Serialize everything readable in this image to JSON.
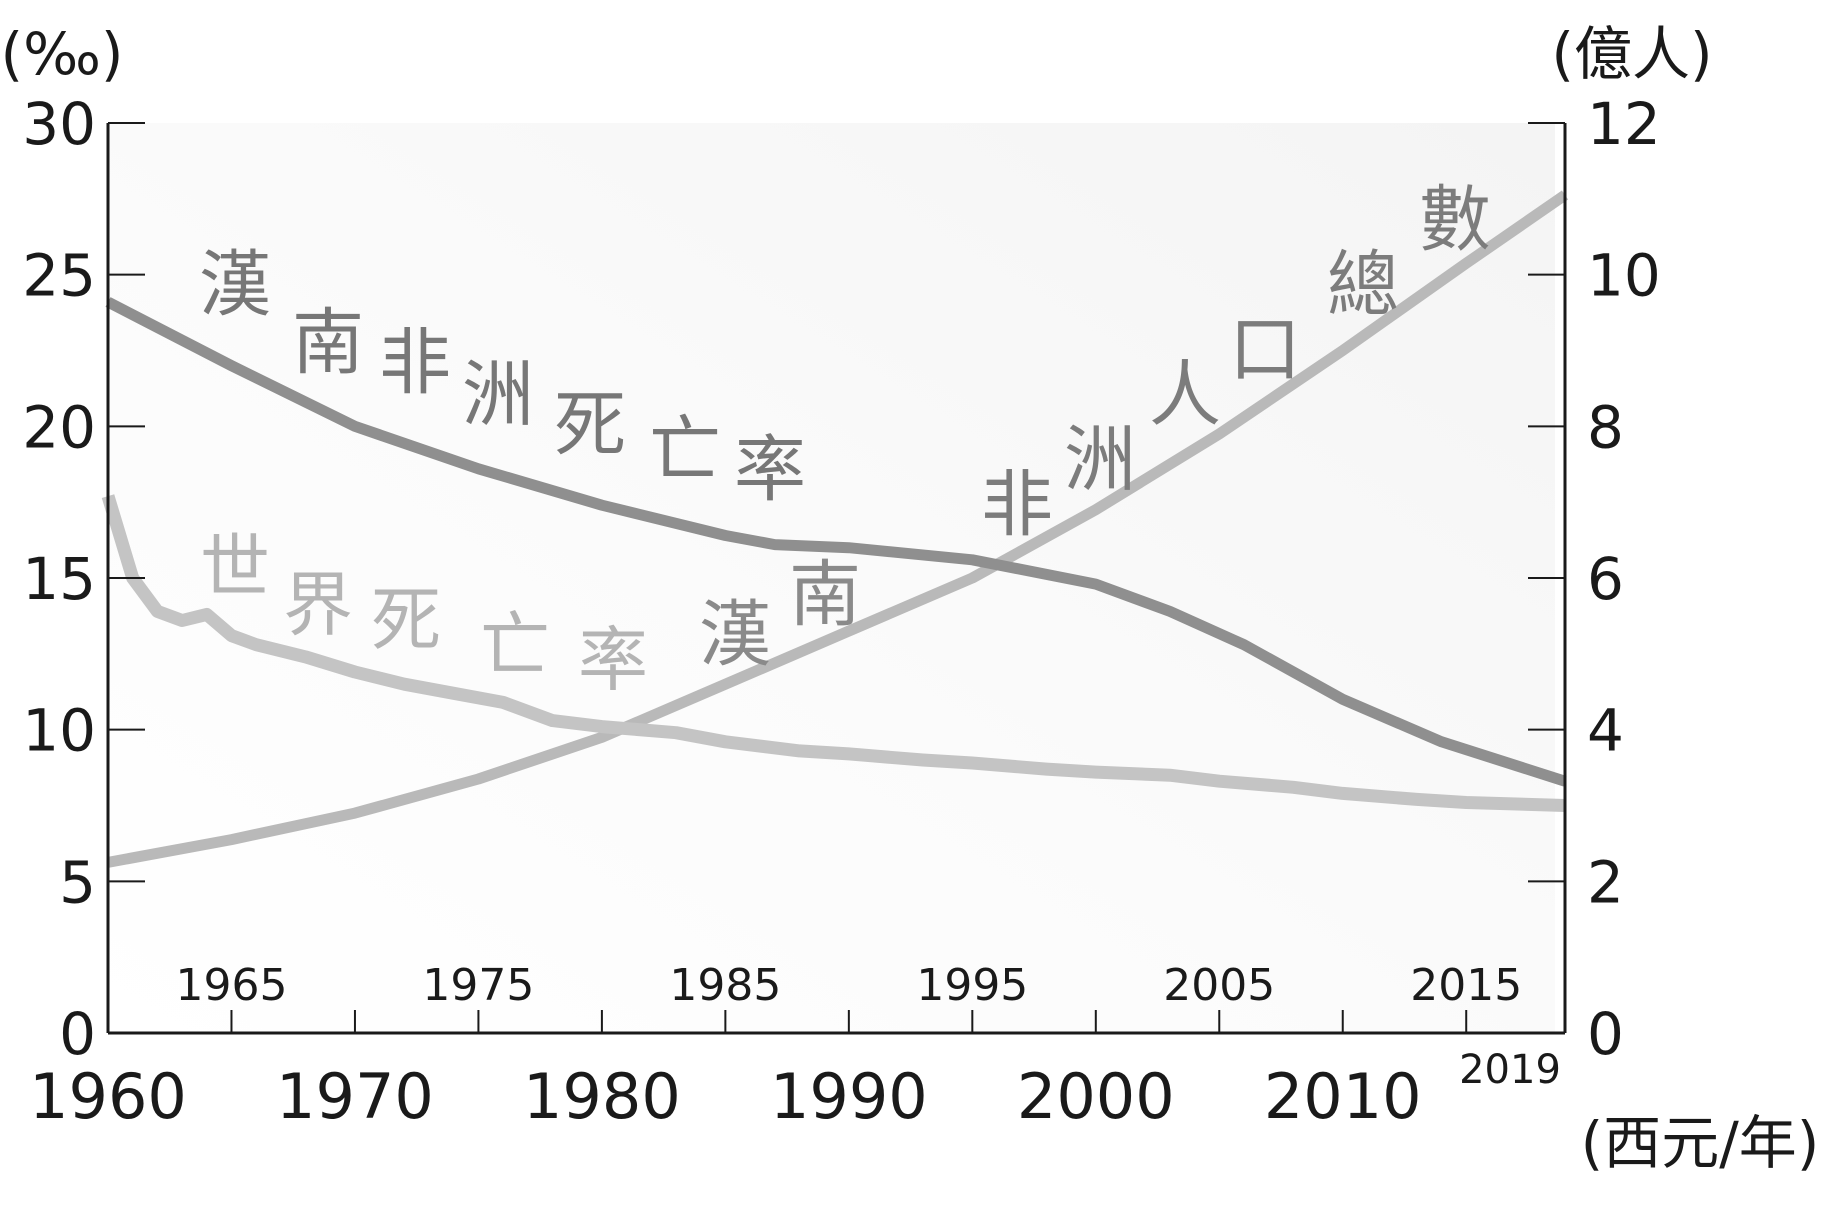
{
  "chart_data": {
    "type": "line",
    "left_axis": {
      "unit_label": "(‰)",
      "range": [
        0,
        30
      ],
      "ticks": [
        "0",
        "5",
        "10",
        "15",
        "20",
        "25",
        "30"
      ]
    },
    "right_axis": {
      "unit_label": "(億人)",
      "range": [
        0,
        12
      ],
      "ticks": [
        "0",
        "2",
        "4",
        "6",
        "8",
        "10",
        "12"
      ]
    },
    "x_axis": {
      "range": [
        1960,
        2019
      ],
      "unit_label": "(西元/年)",
      "major_ticks": [
        "1960",
        "1970",
        "1980",
        "1990",
        "2000",
        "2010"
      ],
      "minor_ticks": [
        "1965",
        "1975",
        "1985",
        "1995",
        "2005",
        "2015"
      ],
      "end_label": "2019"
    },
    "grid": false,
    "series": [
      {
        "name": "漢南非洲死亡率",
        "axis": "left",
        "color": "#8f8f8f",
        "x": [
          1960,
          1965,
          1970,
          1975,
          1980,
          1985,
          1987,
          1990,
          1995,
          2000,
          2003,
          2006,
          2010,
          2014,
          2019
        ],
        "y": [
          24.1,
          22.0,
          20.0,
          18.6,
          17.4,
          16.4,
          16.1,
          16.0,
          15.6,
          14.8,
          13.9,
          12.8,
          11.0,
          9.6,
          8.3
        ]
      },
      {
        "name": "世界死亡率",
        "axis": "left",
        "color": "#c4c4c4",
        "x": [
          1960,
          1961,
          1962,
          1963,
          1964,
          1965,
          1966,
          1968,
          1970,
          1972,
          1974,
          1976,
          1978,
          1980,
          1983,
          1985,
          1988,
          1990,
          1993,
          1995,
          1998,
          2000,
          2003,
          2005,
          2008,
          2010,
          2013,
          2015,
          2019
        ],
        "y": [
          17.7,
          15.0,
          13.9,
          13.6,
          13.8,
          13.1,
          12.8,
          12.4,
          11.9,
          11.5,
          11.2,
          10.9,
          10.3,
          10.1,
          9.9,
          9.6,
          9.3,
          9.2,
          9.0,
          8.9,
          8.7,
          8.6,
          8.5,
          8.3,
          8.1,
          7.9,
          7.7,
          7.6,
          7.5
        ]
      },
      {
        "name": "漢南非洲人口總數",
        "axis": "right",
        "color": "#b9b9b9",
        "x": [
          1960,
          1965,
          1970,
          1975,
          1980,
          1985,
          1990,
          1995,
          2000,
          2005,
          2010,
          2015,
          2019
        ],
        "y": [
          2.25,
          2.55,
          2.9,
          3.35,
          3.9,
          4.6,
          5.3,
          6.0,
          6.9,
          7.9,
          9.0,
          10.15,
          11.05
        ]
      }
    ],
    "annotations": [
      {
        "series": "漢南非洲死亡率",
        "chars": [
          "漢",
          "南",
          "非",
          "洲",
          "死",
          "亡",
          "率"
        ]
      },
      {
        "series": "世界死亡率",
        "chars": [
          "世",
          "界",
          "死",
          "亡",
          "率"
        ]
      },
      {
        "series": "世界死亡率",
        "chars": [
          "漢",
          "南"
        ]
      },
      {
        "series": "漢南非洲人口總數",
        "chars": [
          "非",
          "洲",
          "人",
          "口",
          "總",
          "數"
        ]
      }
    ]
  }
}
